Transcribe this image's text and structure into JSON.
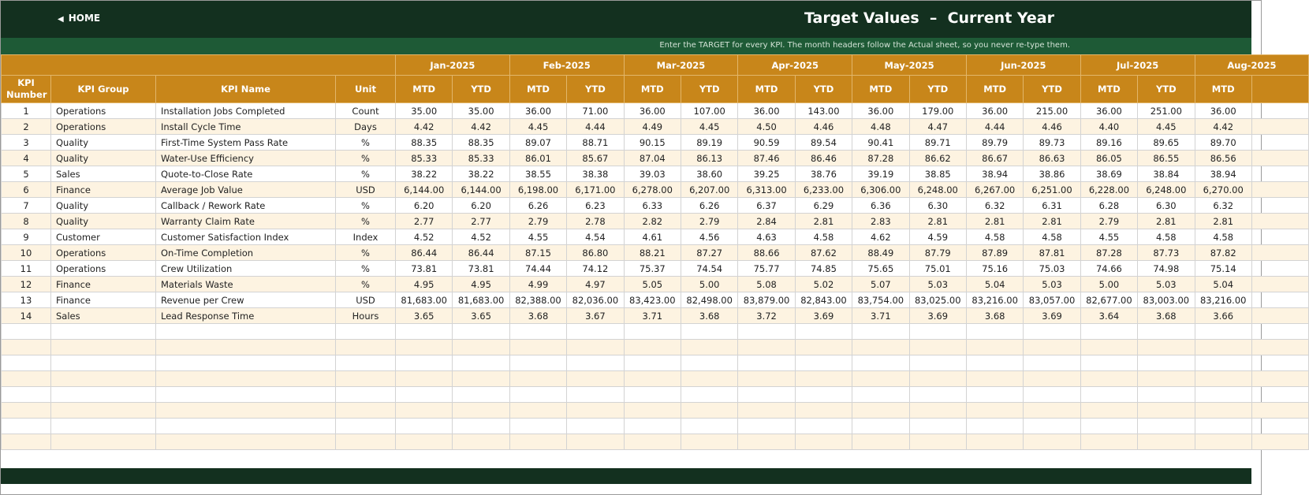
{
  "header": {
    "home": "HOME",
    "title": "Target Values  –  Current Year",
    "instruction": "Enter the TARGET for every KPI. The month headers follow the Actual sheet, so you never re-type them."
  },
  "table": {
    "columns": [
      "KPI Number",
      "KPI Group",
      "KPI Name",
      "Unit"
    ],
    "months": [
      "Jan-2025",
      "Feb-2025",
      "Mar-2025",
      "Apr-2025",
      "May-2025",
      "Jun-2025",
      "Jul-2025",
      "Aug-2025"
    ],
    "subheaders": [
      "MTD",
      "YTD",
      "MTD",
      "YTD",
      "MTD",
      "YTD",
      "MTD",
      "YTD",
      "MTD",
      "YTD",
      "MTD",
      "YTD",
      "MTD",
      "YTD",
      "MTD"
    ],
    "rows": [
      [
        1,
        "Operations",
        "Installation Jobs Completed",
        "Count",
        "35.00",
        "35.00",
        "36.00",
        "71.00",
        "36.00",
        "107.00",
        "36.00",
        "143.00",
        "36.00",
        "179.00",
        "36.00",
        "215.00",
        "36.00",
        "251.00",
        "36.00"
      ],
      [
        2,
        "Operations",
        "Install Cycle Time",
        "Days",
        "4.42",
        "4.42",
        "4.45",
        "4.44",
        "4.49",
        "4.45",
        "4.50",
        "4.46",
        "4.48",
        "4.47",
        "4.44",
        "4.46",
        "4.40",
        "4.45",
        "4.42"
      ],
      [
        3,
        "Quality",
        "First-Time System Pass Rate",
        "%",
        "88.35",
        "88.35",
        "89.07",
        "88.71",
        "90.15",
        "89.19",
        "90.59",
        "89.54",
        "90.41",
        "89.71",
        "89.79",
        "89.73",
        "89.16",
        "89.65",
        "89.70"
      ],
      [
        4,
        "Quality",
        "Water-Use Efficiency",
        "%",
        "85.33",
        "85.33",
        "86.01",
        "85.67",
        "87.04",
        "86.13",
        "87.46",
        "86.46",
        "87.28",
        "86.62",
        "86.67",
        "86.63",
        "86.05",
        "86.55",
        "86.56"
      ],
      [
        5,
        "Sales",
        "Quote-to-Close Rate",
        "%",
        "38.22",
        "38.22",
        "38.55",
        "38.38",
        "39.03",
        "38.60",
        "39.25",
        "38.76",
        "39.19",
        "38.85",
        "38.94",
        "38.86",
        "38.69",
        "38.84",
        "38.94"
      ],
      [
        6,
        "Finance",
        "Average Job Value",
        "USD",
        "6,144.00",
        "6,144.00",
        "6,198.00",
        "6,171.00",
        "6,278.00",
        "6,207.00",
        "6,313.00",
        "6,233.00",
        "6,306.00",
        "6,248.00",
        "6,267.00",
        "6,251.00",
        "6,228.00",
        "6,248.00",
        "6,270.00"
      ],
      [
        7,
        "Quality",
        "Callback / Rework Rate",
        "%",
        "6.20",
        "6.20",
        "6.26",
        "6.23",
        "6.33",
        "6.26",
        "6.37",
        "6.29",
        "6.36",
        "6.30",
        "6.32",
        "6.31",
        "6.28",
        "6.30",
        "6.32"
      ],
      [
        8,
        "Quality",
        "Warranty Claim Rate",
        "%",
        "2.77",
        "2.77",
        "2.79",
        "2.78",
        "2.82",
        "2.79",
        "2.84",
        "2.81",
        "2.83",
        "2.81",
        "2.81",
        "2.81",
        "2.79",
        "2.81",
        "2.81"
      ],
      [
        9,
        "Customer",
        "Customer Satisfaction Index",
        "Index",
        "4.52",
        "4.52",
        "4.55",
        "4.54",
        "4.61",
        "4.56",
        "4.63",
        "4.58",
        "4.62",
        "4.59",
        "4.58",
        "4.58",
        "4.55",
        "4.58",
        "4.58"
      ],
      [
        10,
        "Operations",
        "On-Time Completion",
        "%",
        "86.44",
        "86.44",
        "87.15",
        "86.80",
        "88.21",
        "87.27",
        "88.66",
        "87.62",
        "88.49",
        "87.79",
        "87.89",
        "87.81",
        "87.28",
        "87.73",
        "87.82"
      ],
      [
        11,
        "Operations",
        "Crew Utilization",
        "%",
        "73.81",
        "73.81",
        "74.44",
        "74.12",
        "75.37",
        "74.54",
        "75.77",
        "74.85",
        "75.65",
        "75.01",
        "75.16",
        "75.03",
        "74.66",
        "74.98",
        "75.14"
      ],
      [
        12,
        "Finance",
        "Materials Waste",
        "%",
        "4.95",
        "4.95",
        "4.99",
        "4.97",
        "5.05",
        "5.00",
        "5.08",
        "5.02",
        "5.07",
        "5.03",
        "5.04",
        "5.03",
        "5.00",
        "5.03",
        "5.04"
      ],
      [
        13,
        "Finance",
        "Revenue per Crew",
        "USD",
        "81,683.00",
        "81,683.00",
        "82,388.00",
        "82,036.00",
        "83,423.00",
        "82,498.00",
        "83,879.00",
        "82,843.00",
        "83,754.00",
        "83,025.00",
        "83,216.00",
        "83,057.00",
        "82,677.00",
        "83,003.00",
        "83,216.00"
      ],
      [
        14,
        "Sales",
        "Lead Response Time",
        "Hours",
        "3.65",
        "3.65",
        "3.68",
        "3.67",
        "3.71",
        "3.68",
        "3.72",
        "3.69",
        "3.71",
        "3.69",
        "3.68",
        "3.69",
        "3.64",
        "3.68",
        "3.66"
      ]
    ]
  }
}
